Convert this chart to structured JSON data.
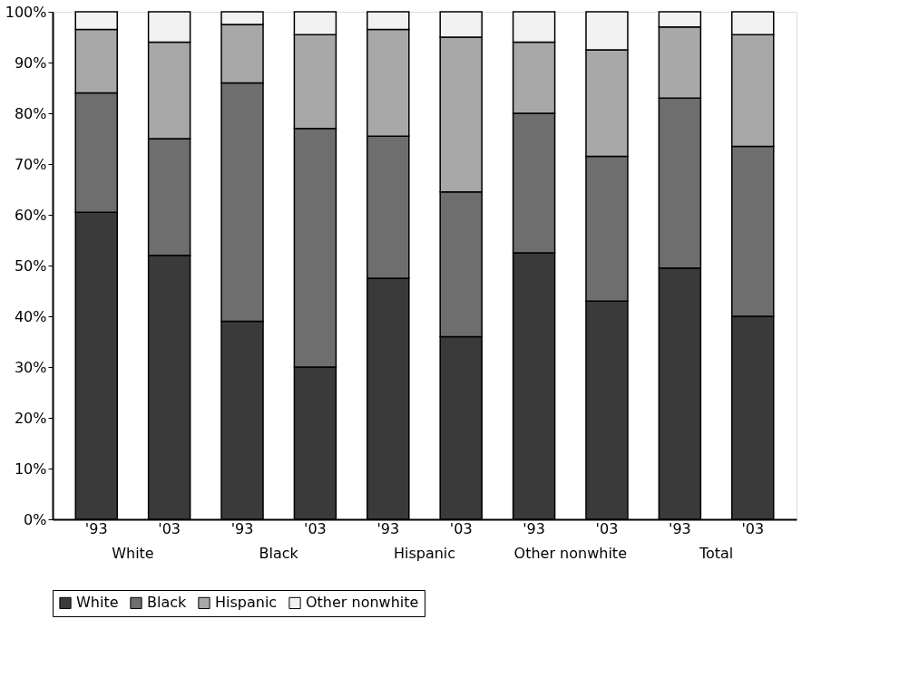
{
  "chart_data": {
    "type": "bar",
    "stacked": true,
    "categories": [
      "'93",
      "'03",
      "'93",
      "'03",
      "'93",
      "'03",
      "'93",
      "'03",
      "'93",
      "'03"
    ],
    "annotations": [
      "White",
      "Black",
      "Hispanic",
      "Other nonwhite",
      "Total"
    ],
    "series": [
      {
        "name": "White",
        "color": "#3a3a3a",
        "values": [
          60.5,
          52,
          39,
          30,
          47.5,
          36,
          52.5,
          43,
          49.5,
          40
        ]
      },
      {
        "name": "Black",
        "color": "#6e6e6e",
        "values": [
          23.5,
          23,
          47,
          47,
          28,
          28.5,
          27.5,
          28.5,
          33.5,
          33.5
        ]
      },
      {
        "name": "Hispanic",
        "color": "#a8a8a8",
        "values": [
          12.5,
          19,
          11.5,
          18.5,
          21,
          30.5,
          14,
          21,
          14,
          22
        ]
      },
      {
        "name": "Other nonwhite",
        "color": "#f2f2f2",
        "values": [
          3.5,
          6,
          2.5,
          4.5,
          3.5,
          5,
          6,
          7.5,
          3,
          4.5
        ]
      }
    ],
    "ylim": [
      0,
      100
    ],
    "yticks": [
      {
        "value": 0,
        "label": "0%"
      },
      {
        "value": 10,
        "label": "10%"
      },
      {
        "value": 20,
        "label": "20%"
      },
      {
        "value": 30,
        "label": "30%"
      },
      {
        "value": 40,
        "label": "40%"
      },
      {
        "value": 50,
        "label": "50%"
      },
      {
        "value": 60,
        "label": "60%"
      },
      {
        "value": 70,
        "label": "70%"
      },
      {
        "value": 80,
        "label": "80%"
      },
      {
        "value": 90,
        "label": "90%"
      },
      {
        "value": 100,
        "label": "100%"
      }
    ],
    "grid": false,
    "legend": "bottom"
  }
}
